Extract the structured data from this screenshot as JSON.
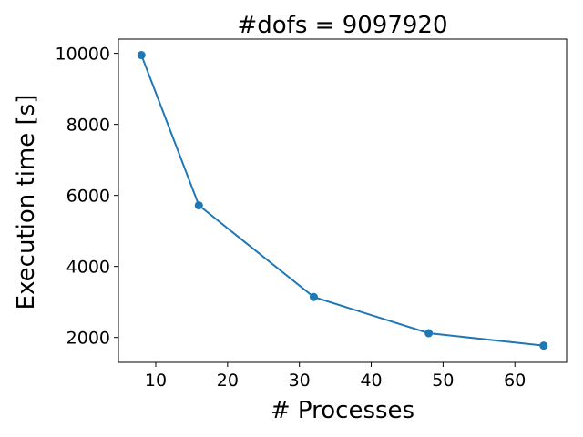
{
  "chart_data": {
    "type": "line",
    "title": "#dofs = 9097920",
    "xlabel": "# Processes",
    "ylabel": "Execution time [s]",
    "xlim": [
      4.8,
      67.2
    ],
    "ylim": [
      1300,
      10400
    ],
    "xticks": [
      10,
      20,
      30,
      40,
      50,
      60
    ],
    "yticks": [
      2000,
      4000,
      6000,
      8000,
      10000
    ],
    "grid": false,
    "series": [
      {
        "color": "#1f77b4",
        "marker": "circle",
        "x": [
          8,
          16,
          32,
          48,
          64
        ],
        "y": [
          9950,
          5720,
          3140,
          2120,
          1770
        ]
      }
    ]
  }
}
